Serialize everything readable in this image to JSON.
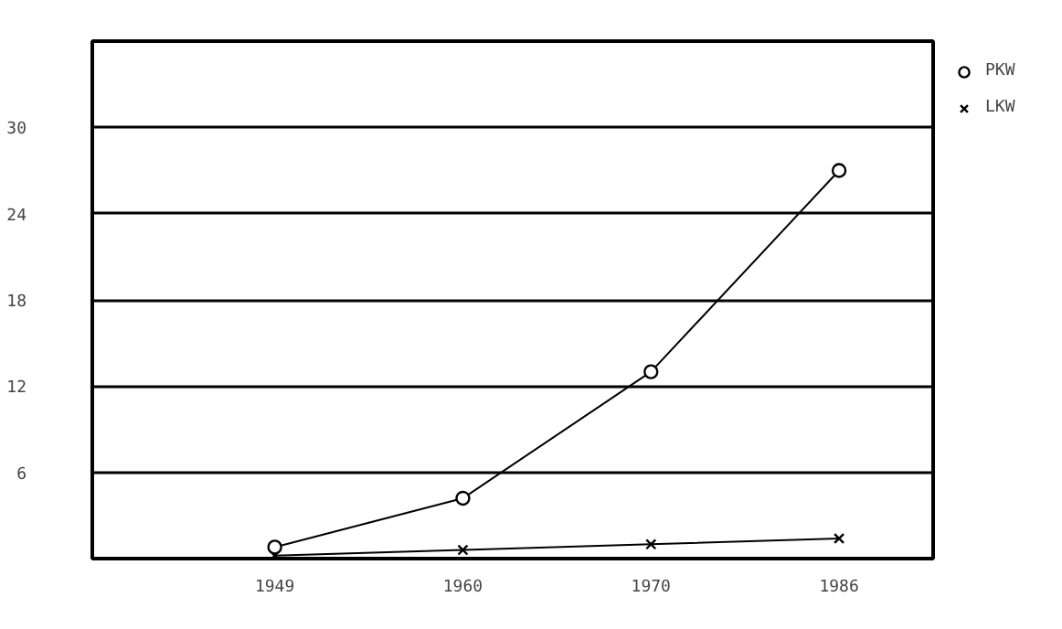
{
  "chart_data": {
    "type": "line",
    "categories": [
      "1949",
      "1960",
      "1970",
      "1986"
    ],
    "series": [
      {
        "name": "PKW",
        "color": "#000000",
        "marker": "circle",
        "values": [
          0.8,
          4.2,
          13.0,
          27.0
        ]
      },
      {
        "name": "LKW",
        "color": "#000000",
        "marker": "cross",
        "values": [
          0.2,
          0.6,
          1.0,
          1.4
        ]
      }
    ],
    "ylim": [
      0,
      36
    ],
    "yticks": [
      {
        "value": 0,
        "label": null
      },
      6,
      12,
      18,
      24,
      30
    ],
    "grid": "y",
    "legend": "top right",
    "line_style": "solid"
  }
}
